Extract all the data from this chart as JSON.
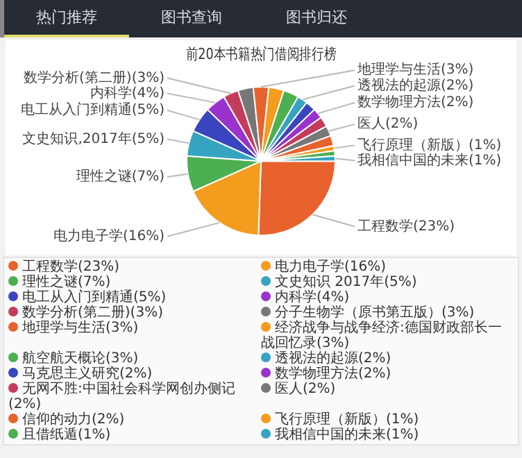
{
  "chart_data": {
    "type": "pie",
    "title": "前20本书籍热门借阅排行榜",
    "annotations": [
      "热门推荐",
      "图书查询",
      "图书归还"
    ],
    "categories": [
      "工程数学(23%)",
      "电力电子学(16%)",
      "理性之谜(7%)",
      "文史知识 2017年(5%)",
      "电工从入门到精通(5%)",
      "内科学(4%)",
      "数学分析(第二册)(3%)",
      "分子生物学（原书第五版）(3%)",
      "地理学与生活(3%)",
      "经济战争与战争经济:德国财政部长一战回忆录(3%)",
      "航空航天概论(3%)",
      "透视法的起源(2%)",
      "马克思主义研究(2%)",
      "数学物理方法(2%)",
      "无网不胜:中国社会科学网创办侧记(2%)",
      "医人(2%)",
      "信仰的动力(2%)",
      "飞行原理（新版）(1%)",
      "且借纸遁(1%)",
      "我相信中国的未来(1%)"
    ],
    "values": [
      23,
      16,
      7,
      5,
      5,
      4,
      3,
      3,
      3,
      3,
      3,
      2,
      2,
      2,
      2,
      2,
      2,
      1,
      1,
      1
    ],
    "colors": [
      "#e8622d",
      "#f39c1e",
      "#4caf50",
      "#35a4c0",
      "#3b45c0",
      "#9933cc",
      "#c43c5c",
      "#777777",
      "#e8622d",
      "#f39c1e",
      "#4caf50",
      "#35a4c0",
      "#3b45c0",
      "#9933cc",
      "#c43c5c",
      "#777777",
      "#e8622d",
      "#f39c1e",
      "#4caf50",
      "#35a4c0"
    ],
    "value_labels": [
      "工程数学(23%)",
      "电力电子学(16%)",
      "理性之谜(7%)",
      "文史知识,2017年(5%)",
      "电工从入门到精通(5%)",
      "内科学(4%)",
      "数学分析(第二册)(3%)",
      null,
      "地理学与生活(3%)",
      null,
      null,
      "透视法的起源(2%)",
      null,
      "数学物理方法(2%)",
      null,
      "医人(2%)",
      null,
      "飞行原理（新版）(1%)",
      null,
      "我相信中国的未来(1%)"
    ],
    "legend": "bottom"
  }
}
